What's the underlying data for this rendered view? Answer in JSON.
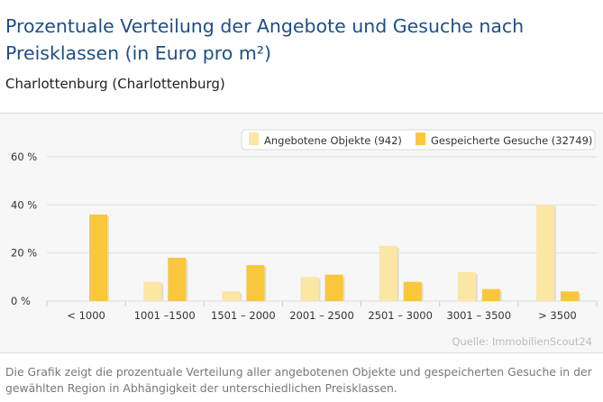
{
  "header": {
    "title": "Prozentuale Verteilung der Angebote und Gesuche nach Preisklassen (in Euro pro m²)",
    "subtitle": "Charlottenburg (Charlottenburg)"
  },
  "footer": {
    "note": "Die Grafik zeigt die prozentuale Verteilung aller angebotenen Objekte und gespeicherten Gesuche in der gewählten Region in Abhängigkeit der unterschiedlichen Preisklassen."
  },
  "colors": {
    "series_light": "#fbe6a3",
    "series_dark": "#f9c73c",
    "title": "#1f4f86"
  },
  "chart_data": {
    "type": "bar",
    "categories": [
      "< 1000",
      "1001 –1500",
      "1501 – 2000",
      "2001 – 2500",
      "2501 – 3000",
      "3001 – 3500",
      "> 3500"
    ],
    "series": [
      {
        "name": "Angebotene Objekte (942)",
        "values": [
          0,
          8,
          4,
          10,
          23,
          12,
          40
        ]
      },
      {
        "name": "Gespeicherte Gesuche (32749)",
        "values": [
          36,
          18,
          15,
          11,
          8,
          5,
          4
        ]
      }
    ],
    "y_ticks": [
      "0 %",
      "20 %",
      "40 %",
      "60 %"
    ],
    "ylim": [
      0,
      60
    ],
    "legend_position": "top-right",
    "source": "Quelle: ImmobilienScout24",
    "grid": true
  }
}
